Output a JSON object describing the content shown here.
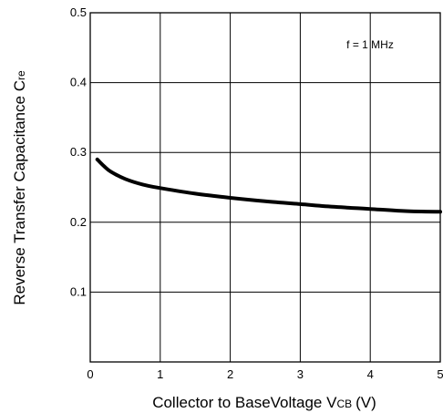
{
  "chart_data": {
    "type": "line",
    "title": "",
    "xlabel": "Collector to BaseVoltage V",
    "xlabel_sub": "CB",
    "xlabel_unit": "(V)",
    "ylabel": "Reverse Transfer Capacitance C",
    "ylabel_sub": "re",
    "xlim": [
      0,
      5
    ],
    "ylim": [
      0,
      0.5
    ],
    "xticks": [
      0,
      1,
      2,
      3,
      4,
      5
    ],
    "xtick_labels": [
      "0",
      "1",
      "2",
      "3",
      "4",
      "5"
    ],
    "yticks": [
      0.1,
      0.2,
      0.3,
      0.4,
      0.5
    ],
    "ytick_labels": [
      "0.1",
      "0.2",
      "0.3",
      "0.4",
      "0.5"
    ],
    "grid": true,
    "annotation": "f = 1 MHz",
    "series": [
      {
        "x": [
          0.1,
          0.2,
          0.3,
          0.5,
          0.75,
          1.0,
          1.5,
          2.0,
          2.5,
          3.0,
          3.5,
          4.0,
          4.5,
          5.0
        ],
        "y": [
          0.29,
          0.28,
          0.272,
          0.262,
          0.254,
          0.249,
          0.241,
          0.235,
          0.23,
          0.226,
          0.222,
          0.219,
          0.216,
          0.215
        ],
        "color": "#000000"
      }
    ]
  }
}
